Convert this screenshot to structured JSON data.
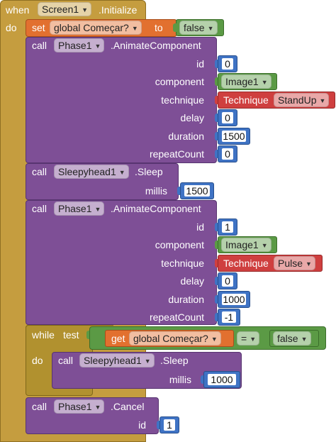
{
  "event": {
    "keyword_when": "when",
    "component": "Screen1",
    "event_name": ".Initialize",
    "keyword_do": "do"
  },
  "set_block": {
    "keyword_set": "set",
    "variable": "global Começar?",
    "keyword_to": "to",
    "value": "false"
  },
  "animate1": {
    "keyword_call": "call",
    "component": "Phase1",
    "method": ".AnimateComponent",
    "params": [
      "id",
      "component",
      "technique",
      "delay",
      "duration",
      "repeatCount"
    ],
    "id": "0",
    "component_value": "Image1",
    "technique_label": "Technique",
    "technique_value": "StandUp",
    "delay": "0",
    "duration": "1500",
    "repeatCount": "0"
  },
  "sleep1": {
    "keyword_call": "call",
    "component": "Sleepyhead1",
    "method": ".Sleep",
    "param": "millis",
    "millis": "1500"
  },
  "animate2": {
    "keyword_call": "call",
    "component": "Phase1",
    "method": ".AnimateComponent",
    "params": [
      "id",
      "component",
      "technique",
      "delay",
      "duration",
      "repeatCount"
    ],
    "id": "1",
    "component_value": "Image1",
    "technique_label": "Technique",
    "technique_value": "Pulse",
    "delay": "0",
    "duration": "1000",
    "repeatCount": "-1"
  },
  "while_block": {
    "keyword_while": "while",
    "keyword_test": "test",
    "keyword_get": "get",
    "variable": "global Começar?",
    "operator": "=",
    "compare_value": "false",
    "keyword_do": "do"
  },
  "sleep2": {
    "keyword_call": "call",
    "component": "Sleepyhead1",
    "method": ".Sleep",
    "param": "millis",
    "millis": "1000"
  },
  "cancel": {
    "keyword_call": "call",
    "component": "Phase1",
    "method": ".Cancel",
    "param": "id",
    "id": "1"
  },
  "colors": {
    "event": "#c59d3f",
    "variable": "#e2702f",
    "procedure": "#7e4f96",
    "number": "#3f73c4",
    "logic": "#5b9a45",
    "technique": "#cf3f3f",
    "control": "#b1912f"
  }
}
